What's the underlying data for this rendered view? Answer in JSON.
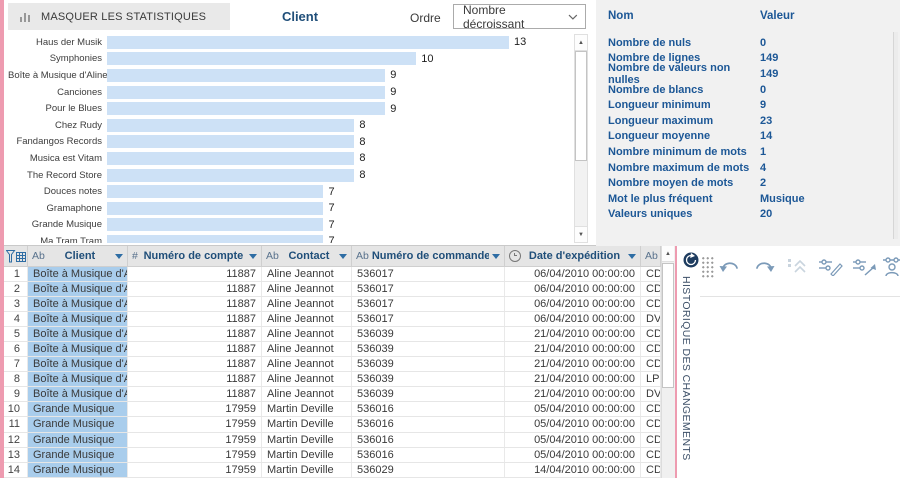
{
  "topbar": {
    "hide_stats_button": "MASQUER LES STATISTIQUES",
    "chart_title": "Client",
    "order_label": "Ordre",
    "order_value": "Nombre décroissant"
  },
  "chart_data": {
    "type": "bar",
    "orientation": "horizontal",
    "title": "Client",
    "sort_order": "Nombre décroissant",
    "categories": [
      "Haus der Musik",
      "Symphonies",
      "Boîte à Musique d'Aline",
      "Canciones",
      "Pour le Blues",
      "Chez Rudy",
      "Fandangos Records",
      "Musica est Vitam",
      "The Record Store",
      "Douces notes",
      "Gramaphone",
      "Grande Musique",
      "Ma Tram Tram"
    ],
    "values": [
      13,
      10,
      9,
      9,
      9,
      8,
      8,
      8,
      8,
      7,
      7,
      7,
      7
    ],
    "xmax": 13,
    "bar_color": "#cde1f6"
  },
  "stats": {
    "name_header": "Nom",
    "value_header": "Valeur",
    "rows": [
      {
        "label": "Nombre de nuls",
        "value": "0"
      },
      {
        "label": "Nombre de lignes",
        "value": "149"
      },
      {
        "label": "Nombre de valeurs non nulles",
        "value": "149"
      },
      {
        "label": "Nombre de blancs",
        "value": "0"
      },
      {
        "label": "Longueur minimum",
        "value": "9"
      },
      {
        "label": "Longueur maximum",
        "value": "23"
      },
      {
        "label": "Longueur moyenne",
        "value": "14"
      },
      {
        "label": "Nombre minimum de mots",
        "value": "1"
      },
      {
        "label": "Nombre maximum de mots",
        "value": "4"
      },
      {
        "label": "Nombre moyen de mots",
        "value": "2"
      },
      {
        "label": "Mot le plus fréquent",
        "value": "Musique"
      },
      {
        "label": "Valeurs uniques",
        "value": "20"
      }
    ]
  },
  "table": {
    "columns": [
      {
        "type": "Ab",
        "label": "Client",
        "caret": true
      },
      {
        "type": "#",
        "label": "Numéro de compte",
        "caret": true
      },
      {
        "type": "Ab",
        "label": "Contact",
        "caret": true
      },
      {
        "type": "Ab",
        "label": "Numéro de commande",
        "caret": true
      },
      {
        "type": "clock",
        "label": "Date d'expédition",
        "caret": true
      },
      {
        "type": "Ab",
        "label": "",
        "caret": false
      }
    ],
    "rows": [
      [
        "1",
        "Boîte à Musique d'Aline",
        "11887",
        "Aline Jeannot",
        "536017",
        "06/04/2010 00:00:00",
        "CD"
      ],
      [
        "2",
        "Boîte à Musique d'Aline",
        "11887",
        "Aline Jeannot",
        "536017",
        "06/04/2010 00:00:00",
        "CD"
      ],
      [
        "3",
        "Boîte à Musique d'Aline",
        "11887",
        "Aline Jeannot",
        "536017",
        "06/04/2010 00:00:00",
        "CD"
      ],
      [
        "4",
        "Boîte à Musique d'Aline",
        "11887",
        "Aline Jeannot",
        "536017",
        "06/04/2010 00:00:00",
        "DVD"
      ],
      [
        "5",
        "Boîte à Musique d'Aline",
        "11887",
        "Aline Jeannot",
        "536039",
        "21/04/2010 00:00:00",
        "CD"
      ],
      [
        "6",
        "Boîte à Musique d'Aline",
        "11887",
        "Aline Jeannot",
        "536039",
        "21/04/2010 00:00:00",
        "CD"
      ],
      [
        "7",
        "Boîte à Musique d'Aline",
        "11887",
        "Aline Jeannot",
        "536039",
        "21/04/2010 00:00:00",
        "CD"
      ],
      [
        "8",
        "Boîte à Musique d'Aline",
        "11887",
        "Aline Jeannot",
        "536039",
        "21/04/2010 00:00:00",
        "LP"
      ],
      [
        "9",
        "Boîte à Musique d'Aline",
        "11887",
        "Aline Jeannot",
        "536039",
        "21/04/2010 00:00:00",
        "DVD"
      ],
      [
        "10",
        "Grande Musique",
        "17959",
        "Martin Deville",
        "536016",
        "05/04/2010 00:00:00",
        "CD"
      ],
      [
        "11",
        "Grande Musique",
        "17959",
        "Martin Deville",
        "536016",
        "05/04/2010 00:00:00",
        "CD"
      ],
      [
        "12",
        "Grande Musique",
        "17959",
        "Martin Deville",
        "536016",
        "05/04/2010 00:00:00",
        "CD"
      ],
      [
        "13",
        "Grande Musique",
        "17959",
        "Martin Deville",
        "536016",
        "05/04/2010 00:00:00",
        "CD"
      ],
      [
        "14",
        "Grande Musique",
        "17959",
        "Martin Deville",
        "536029",
        "14/04/2010 00:00:00",
        "CD"
      ]
    ]
  },
  "history_panel": {
    "title": "HISTORIQUE DES CHANGEMENTS"
  },
  "colors": {
    "accent_blue": "#1c5796",
    "header_blue": "#1f4e79",
    "bar_fill": "#cde1f6",
    "cell_highlight": "#a9cdec",
    "pink_edge": "#ee9bb0"
  }
}
